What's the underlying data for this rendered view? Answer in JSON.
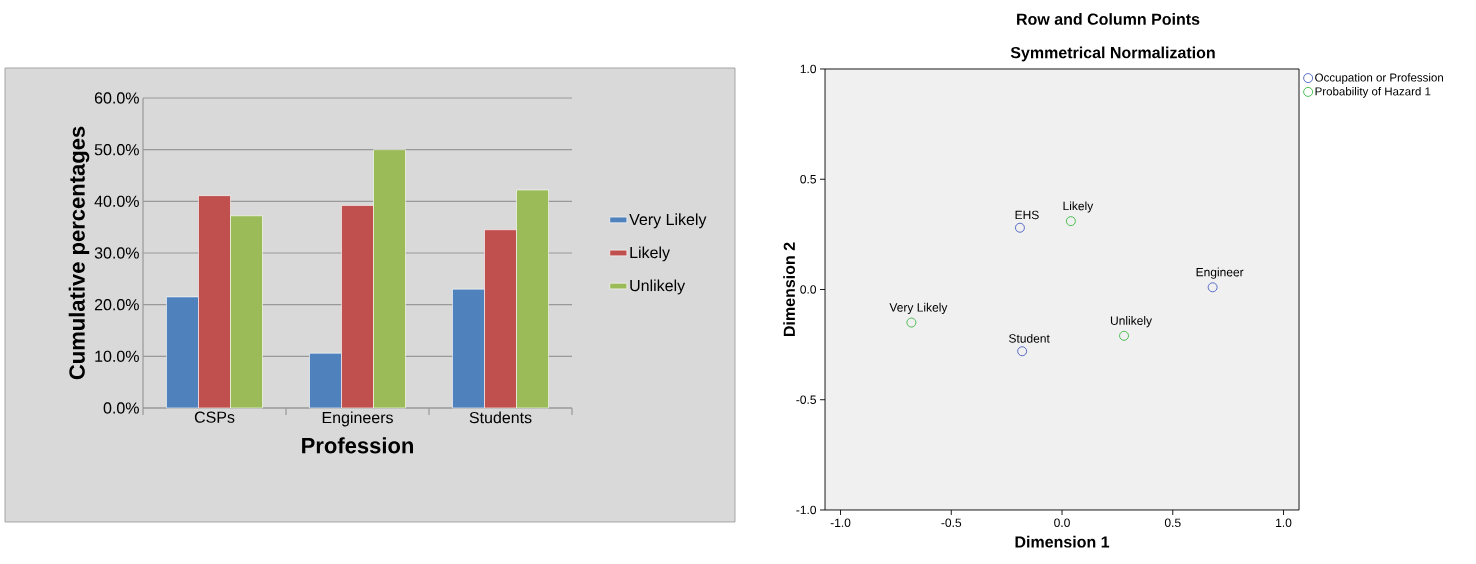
{
  "chart_data": [
    {
      "type": "bar",
      "categories": [
        "CSPs",
        "Engineers",
        "Students"
      ],
      "xlabel": "Profession",
      "ylabel": "Cumulative percentages",
      "series": [
        {
          "name": "Very Likely",
          "color": "#4f81bd",
          "values": [
            21.5,
            10.6,
            23.0
          ]
        },
        {
          "name": "Likely",
          "color": "#c0504d",
          "values": [
            41.1,
            39.2,
            34.5
          ]
        },
        {
          "name": "Unlikely",
          "color": "#9bbb59",
          "values": [
            37.2,
            50.0,
            42.2
          ]
        }
      ],
      "ylim": [
        0,
        60
      ],
      "yticks": [
        {
          "value": 0,
          "label": "0.0%"
        },
        {
          "value": 10,
          "label": "10.0%"
        },
        {
          "value": 20,
          "label": "20.0%"
        },
        {
          "value": 30,
          "label": "30.0%"
        },
        {
          "value": 40,
          "label": "40.0%"
        },
        {
          "value": 50,
          "label": "50.0%"
        },
        {
          "value": 60,
          "label": "60.0%"
        }
      ],
      "grid": "y",
      "legend": "right"
    },
    {
      "type": "scatter",
      "title": "Row and Column Points",
      "subtitle": "Symmetrical Normalization",
      "xlabel": "Dimension 1",
      "ylabel": "Dimension 2",
      "series": [
        {
          "name": "Occupation or Profession",
          "color": "#4a5fc0",
          "x": [
            -0.19,
            -0.18,
            0.68
          ],
          "values": [
            0.28,
            -0.28,
            0.01
          ]
        },
        {
          "name": "Probability of Hazard 1",
          "color": "#3cb843",
          "x": [
            0.04,
            -0.68,
            0.28
          ],
          "values": [
            0.31,
            -0.15,
            -0.21
          ]
        }
      ],
      "xlim": [
        -1.07,
        1.07
      ],
      "ylim": [
        -1,
        1
      ],
      "xticks": [
        {
          "value": -1,
          "label": "-1.0"
        },
        {
          "value": -0.5,
          "label": "-0.5"
        },
        {
          "value": 0,
          "label": "0.0"
        },
        {
          "value": 0.5,
          "label": "0.5"
        },
        {
          "value": 1,
          "label": "1.0"
        }
      ],
      "yticks": [
        {
          "value": -1,
          "label": "-1.0"
        },
        {
          "value": -0.5,
          "label": "-0.5"
        },
        {
          "value": 0,
          "label": "0.0"
        },
        {
          "value": 0.5,
          "label": "0.5"
        },
        {
          "value": 1,
          "label": "1.0"
        }
      ],
      "marker": "circle",
      "legend": "top right",
      "annotations": [
        {
          "text": "EHS",
          "x": -0.19,
          "y": 0.28
        },
        {
          "text": "Student",
          "x": -0.18,
          "y": -0.28
        },
        {
          "text": "Engineer",
          "x": 0.68,
          "y": 0.01
        },
        {
          "text": "Likely",
          "x": 0.04,
          "y": 0.31
        },
        {
          "text": "Very Likely",
          "x": -0.68,
          "y": -0.15
        },
        {
          "text": "Unlikely",
          "x": 0.28,
          "y": -0.21
        }
      ]
    }
  ]
}
